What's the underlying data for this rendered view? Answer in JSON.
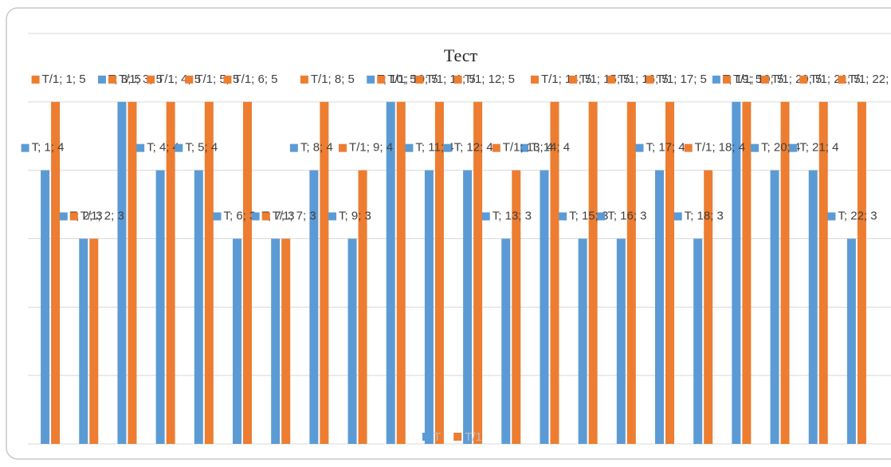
{
  "chart_data": {
    "type": "bar",
    "title": "Тест",
    "series": [
      {
        "name": "T",
        "color": "#5b9bd5",
        "values": [
          4,
          3,
          5,
          4,
          4,
          3,
          3,
          4,
          3,
          5,
          4,
          4,
          3,
          4,
          3,
          3,
          4,
          3,
          5,
          4,
          4,
          3
        ],
        "value_labels": [
          "T; 1; 4",
          "T; 2; 3",
          "T; 3; 5",
          "T; 4; 4",
          "T; 5; 4",
          "T; 6; 3",
          "T; 7; 3",
          "T; 8; 4",
          "T; 9; 3",
          "T; 10; 5",
          "T; 11; 4",
          "T; 12; 4",
          "T; 13; 3",
          "T; 14; 4",
          "T; 15; 3",
          "T; 16; 3",
          "T; 17; 4",
          "T; 18; 3",
          "T; 19; 5",
          "T; 20; 4",
          "T; 21; 4",
          "T; 22; 3"
        ]
      },
      {
        "name": "T/1",
        "color": "#ed7d31",
        "values": [
          5,
          3,
          5,
          5,
          5,
          5,
          3,
          5,
          4,
          5,
          5,
          5,
          4,
          5,
          5,
          5,
          5,
          4,
          5,
          5,
          5,
          5
        ],
        "value_labels": [
          "T/1; 1; 5",
          "T/1; 2; 3",
          "T/1; 3; 5",
          "T/1; 4; 5",
          "T/1; 5; 5",
          "T/1; 6; 5",
          "T/1; 7; 3",
          "T/1; 8; 5",
          "T/1; 9; 4",
          "T/1; 10; 5",
          "T/1; 11; 5",
          "T/1; 12; 5",
          "T/1; 13; 4",
          "T/1; 14; 5",
          "T/1; 15; 5",
          "T/1; 16; 5",
          "T/1; 17; 5",
          "T/1; 18; 4",
          "T/1; 19; 5",
          "T/1; 20; 5",
          "T/1; 21; 5",
          "T/1; 22; 5"
        ]
      }
    ],
    "ylim": [
      0,
      6
    ],
    "yticks": [
      0,
      1,
      2,
      3,
      4,
      5,
      6
    ],
    "grid": true,
    "legend": "bottom"
  }
}
